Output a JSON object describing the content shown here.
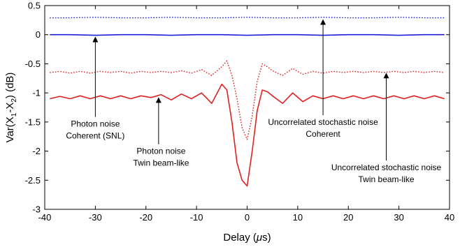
{
  "chart_data": {
    "type": "line",
    "xlabel_pre": "Delay (",
    "xlabel_mu": "μ",
    "xlabel_post": "s)",
    "ylabel_pre": "Var(X",
    "ylabel_sub1": "1",
    "ylabel_mid": "-X",
    "ylabel_sub2": "2",
    "ylabel_post": ") (dB)",
    "xlim": [
      -40,
      40
    ],
    "ylim": [
      -3,
      0.5
    ],
    "xticks": [
      -40,
      -30,
      -20,
      -10,
      0,
      10,
      20,
      30,
      40
    ],
    "xtick_labels": [
      "-40",
      "-30",
      "-20",
      "-10",
      "0",
      "10",
      "20",
      "30",
      "40"
    ],
    "yticks": [
      0.5,
      0,
      -0.5,
      -1,
      -1.5,
      -2,
      -2.5,
      -3
    ],
    "ytick_labels": [
      "0.5",
      "0",
      "-0.5",
      "-1",
      "-1.5",
      "-2",
      "-2.5",
      "-3"
    ],
    "grid": false,
    "series": [
      {
        "id": "blue-dotted",
        "color": "#1f1fd6",
        "style": "dotted",
        "x": [
          -39,
          -35,
          -30,
          -25,
          -20,
          -15,
          -10,
          -5,
          0,
          5,
          10,
          15,
          20,
          25,
          30,
          35,
          39
        ],
        "y": [
          0.29,
          0.29,
          0.3,
          0.29,
          0.29,
          0.3,
          0.29,
          0.29,
          0.3,
          0.29,
          0.29,
          0.3,
          0.29,
          0.29,
          0.3,
          0.29,
          0.29
        ]
      },
      {
        "id": "blue-solid",
        "color": "#1f1fd6",
        "style": "solid",
        "x": [
          -39,
          -35,
          -30,
          -25,
          -20,
          -15,
          -10,
          -5,
          0,
          5,
          10,
          15,
          20,
          25,
          30,
          35,
          39
        ],
        "y": [
          0.0,
          0.0,
          -0.01,
          0.0,
          0.0,
          -0.01,
          0.0,
          0.0,
          -0.01,
          0.0,
          0.0,
          -0.01,
          0.0,
          0.0,
          -0.01,
          0.0,
          0.0
        ]
      },
      {
        "id": "red-dotted",
        "color": "#e02020",
        "style": "dotted",
        "x": [
          -39,
          -37,
          -35,
          -33,
          -31,
          -29,
          -27,
          -25,
          -23,
          -21,
          -19,
          -17,
          -15,
          -13,
          -11,
          -9,
          -7,
          -5,
          -4,
          -3,
          -2,
          -1,
          0,
          1,
          2,
          3,
          4,
          5,
          7,
          9,
          11,
          13,
          15,
          17,
          19,
          21,
          23,
          25,
          27,
          29,
          31,
          33,
          35,
          37,
          39
        ],
        "y": [
          -0.65,
          -0.63,
          -0.66,
          -0.63,
          -0.66,
          -0.63,
          -0.65,
          -0.63,
          -0.66,
          -0.63,
          -0.65,
          -0.63,
          -0.65,
          -0.62,
          -0.66,
          -0.6,
          -0.7,
          -0.55,
          -0.45,
          -0.7,
          -1.1,
          -1.6,
          -1.8,
          -1.4,
          -0.8,
          -0.5,
          -0.55,
          -0.62,
          -0.7,
          -0.58,
          -0.68,
          -0.63,
          -0.66,
          -0.63,
          -0.65,
          -0.63,
          -0.65,
          -0.63,
          -0.65,
          -0.63,
          -0.65,
          -0.63,
          -0.65,
          -0.63,
          -0.65
        ]
      },
      {
        "id": "red-solid",
        "color": "#e02020",
        "style": "solid",
        "x": [
          -39,
          -37,
          -35,
          -33,
          -31,
          -29,
          -27,
          -25,
          -23,
          -21,
          -19,
          -17,
          -15,
          -13,
          -11,
          -9,
          -7,
          -5,
          -4,
          -3,
          -2,
          -1,
          0,
          1,
          2,
          3,
          4,
          5,
          7,
          9,
          11,
          13,
          15,
          17,
          19,
          21,
          23,
          25,
          27,
          29,
          31,
          33,
          35,
          37,
          39
        ],
        "y": [
          -1.1,
          -1.06,
          -1.1,
          -1.05,
          -1.1,
          -1.05,
          -1.1,
          -1.05,
          -1.1,
          -1.05,
          -1.08,
          -1.03,
          -1.12,
          -1.02,
          -1.1,
          -1.0,
          -1.18,
          -0.85,
          -0.95,
          -1.5,
          -2.2,
          -2.5,
          -2.6,
          -2.0,
          -1.3,
          -0.95,
          -0.98,
          -1.05,
          -1.18,
          -1.0,
          -1.15,
          -1.05,
          -1.1,
          -1.05,
          -1.1,
          -1.05,
          -1.1,
          -1.05,
          -1.1,
          -1.05,
          -1.1,
          -1.05,
          -1.1,
          -1.05,
          -1.1
        ]
      }
    ],
    "annotations": [
      {
        "lines": [
          "Photon noise",
          "Coherent (SNL)"
        ],
        "text_at": [
          -30,
          -1.58
        ],
        "arrow_to": [
          -30,
          -0.01
        ]
      },
      {
        "lines": [
          "Photon noise",
          "Twin beam-like"
        ],
        "text_at": [
          -17,
          -2.05
        ],
        "arrow_to": [
          -17.5,
          -1.05
        ]
      },
      {
        "lines": [
          "Uncorrelated stochastic noise",
          "Coherent"
        ],
        "text_at": [
          15,
          -1.55
        ],
        "arrow_to": [
          15,
          0.29
        ]
      },
      {
        "lines": [
          "Uncorrelated stochastic noise",
          "Twin beam-like"
        ],
        "text_at": [
          27.5,
          -2.33
        ],
        "arrow_to": [
          27.5,
          -0.63
        ]
      }
    ]
  }
}
